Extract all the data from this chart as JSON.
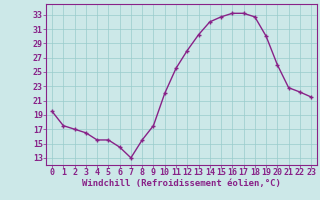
{
  "x": [
    0,
    1,
    2,
    3,
    4,
    5,
    6,
    7,
    8,
    9,
    10,
    11,
    12,
    13,
    14,
    15,
    16,
    17,
    18,
    19,
    20,
    21,
    22,
    23
  ],
  "y": [
    19.5,
    17.5,
    17.0,
    16.5,
    15.5,
    15.5,
    14.5,
    13.0,
    15.5,
    17.5,
    22.0,
    25.5,
    28.0,
    30.2,
    32.0,
    32.7,
    33.2,
    33.2,
    32.7,
    30.0,
    26.0,
    22.8,
    22.2,
    21.5
  ],
  "line_color": "#882288",
  "marker": "+",
  "background_color": "#cce8e8",
  "grid_color": "#99cccc",
  "axis_color": "#882288",
  "tick_label_color": "#882288",
  "xlabel": "Windchill (Refroidissement éolien,°C)",
  "yticks": [
    13,
    15,
    17,
    19,
    21,
    23,
    25,
    27,
    29,
    31,
    33
  ],
  "xticks": [
    0,
    1,
    2,
    3,
    4,
    5,
    6,
    7,
    8,
    9,
    10,
    11,
    12,
    13,
    14,
    15,
    16,
    17,
    18,
    19,
    20,
    21,
    22,
    23
  ],
  "ylim": [
    12.0,
    34.5
  ],
  "xlim": [
    -0.5,
    23.5
  ],
  "xlabel_fontsize": 6.5,
  "tick_fontsize": 6.0,
  "linewidth": 1.0,
  "markersize": 3.5,
  "markeredgewidth": 1.0
}
